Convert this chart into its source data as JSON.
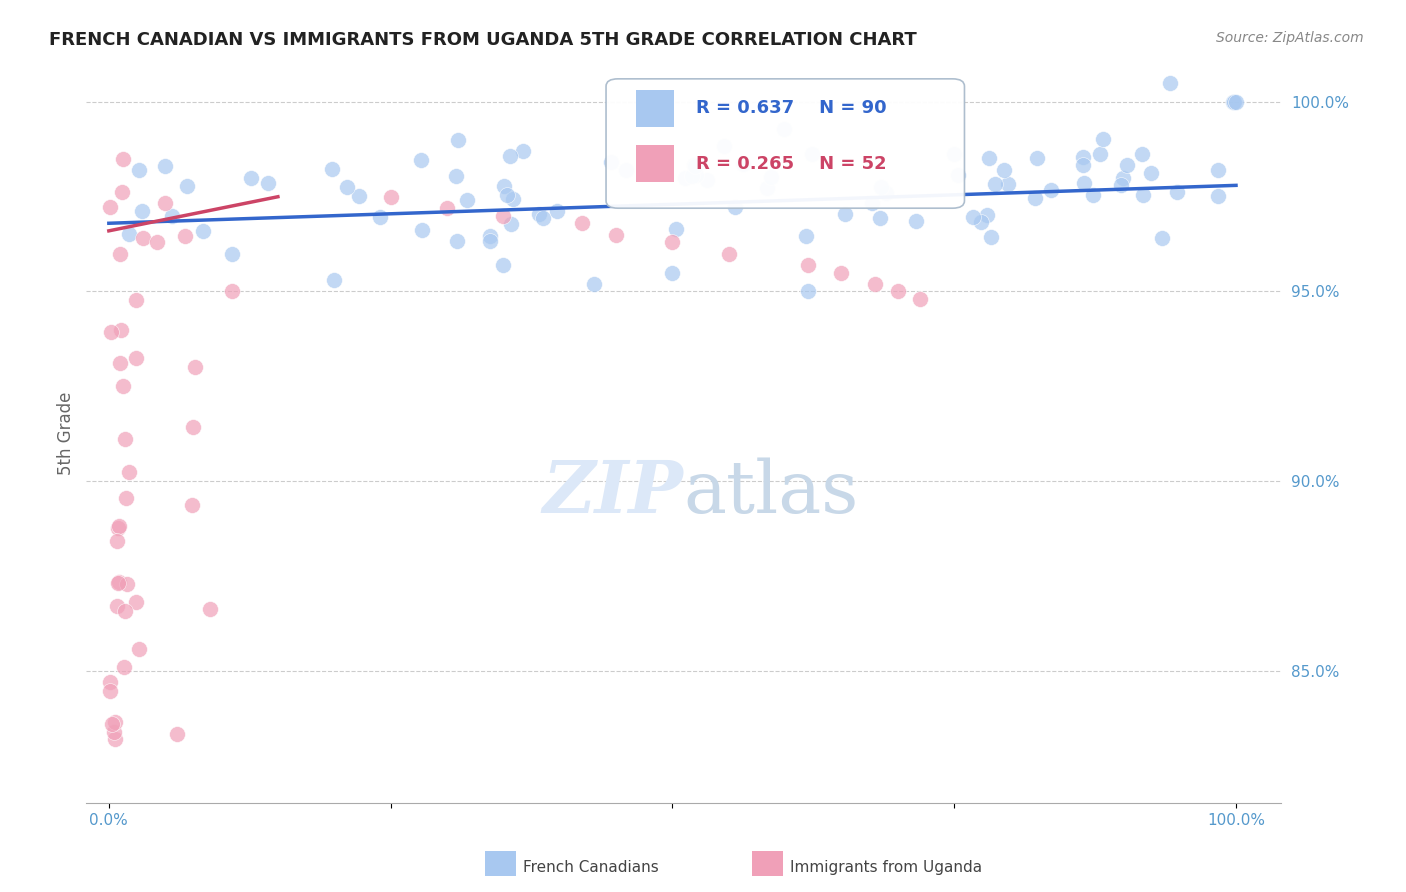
{
  "title": "FRENCH CANADIAN VS IMMIGRANTS FROM UGANDA 5TH GRADE CORRELATION CHART",
  "source": "Source: ZipAtlas.com",
  "ylabel": "5th Grade",
  "blue_color": "#A8C8F0",
  "pink_color": "#F0A0B8",
  "blue_line_color": "#3366CC",
  "pink_line_color": "#CC4466",
  "R_blue": 0.637,
  "N_blue": 90,
  "R_pink": 0.265,
  "N_pink": 52,
  "legend_label_blue": "French Canadians",
  "legend_label_pink": "Immigrants from Uganda",
  "tick_color": "#5599CC",
  "grid_color": "#CCCCCC",
  "watermark_color": "#DCE8F8",
  "xlim": [
    -0.02,
    1.04
  ],
  "ylim": [
    0.815,
    1.01
  ],
  "yticks": [
    0.85,
    0.9,
    0.95,
    1.0
  ],
  "ytick_labels": [
    "85.0%",
    "90.0%",
    "95.0%",
    "100.0%"
  ],
  "xtick_labels": [
    "0.0%",
    "",
    "",
    "",
    "100.0%"
  ]
}
